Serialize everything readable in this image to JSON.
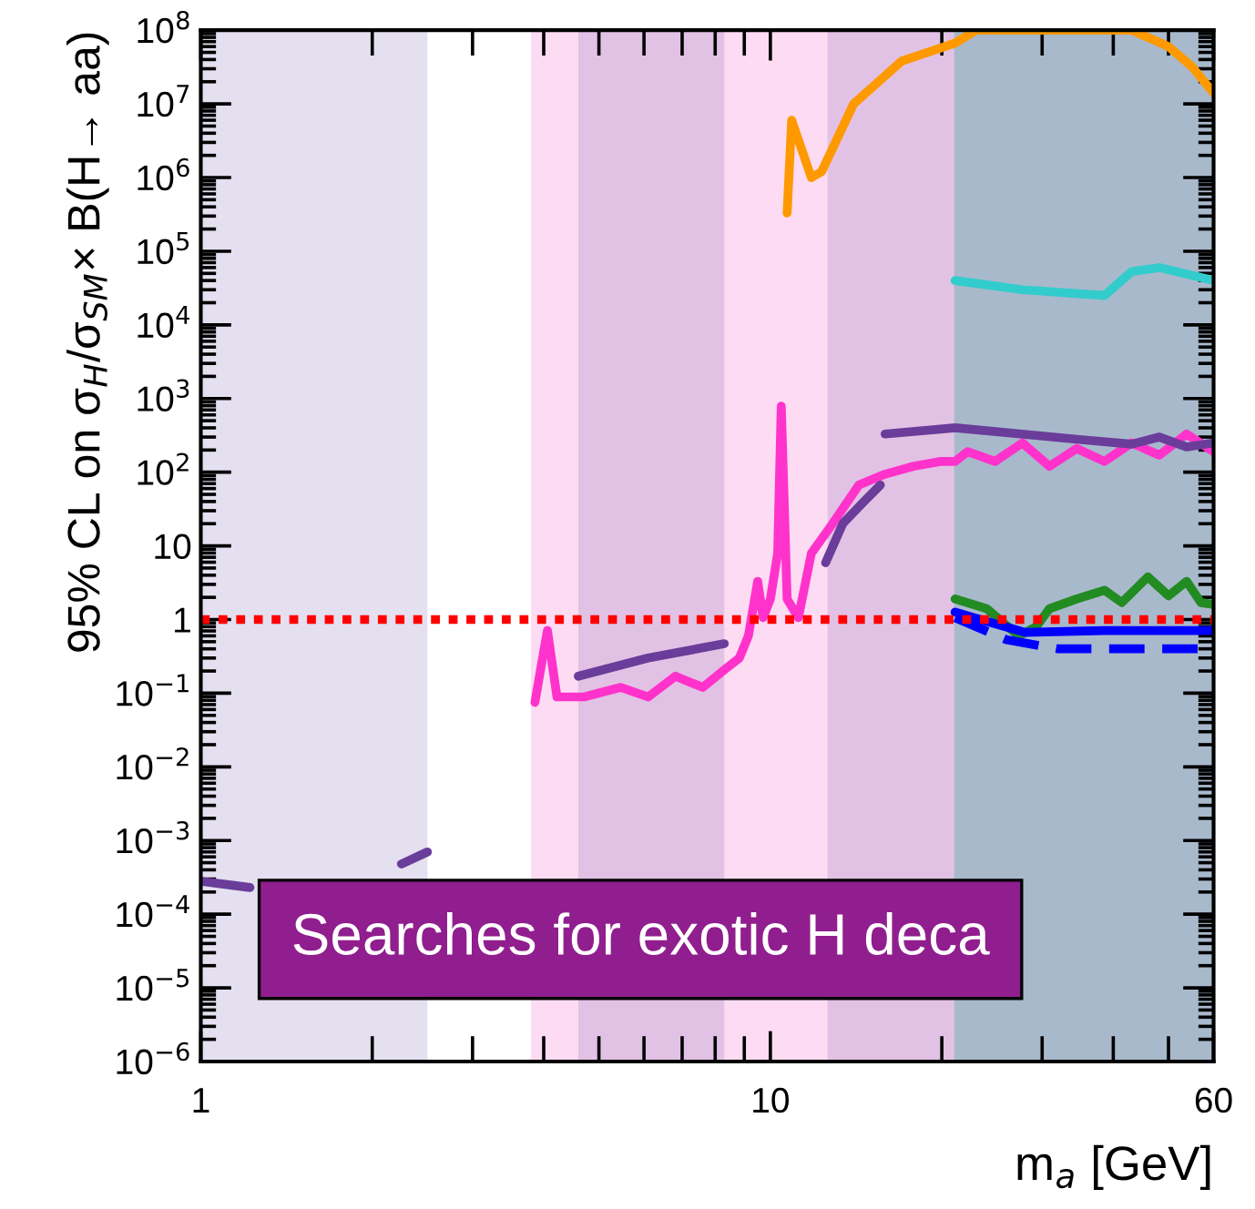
{
  "chart_data": {
    "type": "line",
    "xlabel": "m$_{a}$ [GeV]",
    "ylabel": "95% CL on σ$_{H}$/σ$_{SM}$× B(H→ aa)",
    "log": "xy",
    "grid": false,
    "legend": false,
    "marker": "none",
    "xlim": [
      1,
      60
    ],
    "xticks": [
      1,
      {
        "value": 2,
        "label": null
      },
      {
        "value": 3,
        "label": null
      },
      {
        "value": 4,
        "label": null
      },
      {
        "value": 5,
        "label": null
      },
      {
        "value": 6,
        "label": null
      },
      {
        "value": 7,
        "label": null
      },
      {
        "value": 8,
        "label": null
      },
      {
        "value": 9,
        "label": null
      },
      10,
      {
        "value": 20,
        "label": null
      },
      {
        "value": 30,
        "label": null
      },
      {
        "value": 40,
        "label": null
      },
      {
        "value": 50,
        "label": null
      },
      60
    ],
    "ylim": [
      1e-06,
      100000000.0
    ],
    "yticks": [
      {
        "value": 1e-06,
        "label": "10$^{−6}$"
      },
      {
        "value": 1e-05,
        "label": "10$^{−5}$"
      },
      {
        "value": 0.0001,
        "label": "10$^{−4}$"
      },
      {
        "value": 0.001,
        "label": "10$^{−3}$"
      },
      {
        "value": 0.01,
        "label": "10$^{−2}$"
      },
      {
        "value": 0.1,
        "label": "10$^{−1}$"
      },
      1,
      10,
      {
        "value": 100,
        "label": "10$^{2}$"
      },
      {
        "value": 1000,
        "label": "10$^{3}$"
      },
      {
        "value": 10000.0,
        "label": "10$^{4}$"
      },
      {
        "value": 100000.0,
        "label": "10$^{5}$"
      },
      {
        "value": 1000000.0,
        "label": "10$^{6}$"
      },
      {
        "value": 10000000.0,
        "label": "10$^{7}$"
      },
      {
        "value": 100000000.0,
        "label": "10$^{8}$"
      }
    ],
    "bands": [
      {
        "axis": "x",
        "from": 1,
        "to": 2.5,
        "color": "#e4e0f0"
      },
      {
        "axis": "x",
        "from": 3.8,
        "to": 21,
        "color": "#fddcf3"
      },
      {
        "axis": "x",
        "from": 4.6,
        "to": 8.3,
        "color": "#e2c2e4"
      },
      {
        "axis": "x",
        "from": 12.6,
        "to": 21,
        "color": "#e2c2e4"
      },
      {
        "axis": "x",
        "from": 21,
        "to": 60,
        "color": "#a9b9cc"
      }
    ],
    "ref_lines": [
      {
        "axis": "y",
        "value": 1,
        "color": "#ff0000",
        "line_style": "dotted"
      }
    ],
    "series": [
      {
        "color": "#6a3d9a",
        "line_style": "solid",
        "x": [
          1,
          1.22,
          1.7,
          2.25,
          2.5
        ],
        "values": [
          0.00028,
          0.00023,
          null,
          0.00048,
          0.0007
        ]
      },
      {
        "color": "#6a3d9a",
        "line_style": "solid",
        "x": [
          4.6,
          6.1,
          8.3
        ],
        "values": [
          0.17,
          0.3,
          0.47
        ]
      },
      {
        "color": "#ff33cc",
        "line_style": "solid",
        "x": [
          3.86,
          4.06,
          4.22,
          4.71,
          5.46,
          6.1,
          6.81,
          7.61,
          8.32,
          8.82,
          9.15,
          9.5,
          9.71,
          10.0,
          10.3,
          10.45,
          10.7,
          11.2,
          11.8,
          12.8,
          14.3,
          15.9,
          17.8,
          19.9,
          21.1,
          22.2,
          24.8,
          27.7,
          30.9,
          34.5,
          38.6,
          43.1,
          48.2,
          53.8,
          60
        ],
        "values": [
          0.075,
          0.71,
          0.089,
          0.089,
          0.12,
          0.089,
          0.17,
          0.12,
          0.21,
          0.3,
          0.6,
          3.3,
          1.06,
          1.9,
          7.9,
          790,
          1.9,
          1.06,
          7.9,
          19,
          67,
          94,
          120,
          140,
          140,
          190,
          140,
          250,
          120,
          210,
          140,
          250,
          170,
          330,
          190
        ]
      },
      {
        "color": "#6a3d9a",
        "line_style": "solid",
        "x": [
          12.5,
          13.4,
          14.6,
          15.6
        ],
        "values": [
          5.9,
          20,
          40,
          67
        ]
      },
      {
        "color": "#6a3d9a",
        "line_style": "solid",
        "x": [
          15.9,
          21.1,
          34.5,
          43.1,
          48.2,
          53.8,
          60
        ],
        "values": [
          330,
          400,
          280,
          240,
          300,
          220,
          250
        ]
      },
      {
        "color": "#ff9900",
        "line_style": "solid",
        "x": [
          10.7,
          10.9,
          11.8,
          12.3,
          14.0,
          17.0,
          21.1,
          23.0,
          43.1,
          50.0,
          55.0,
          60
        ],
        "values": [
          330000,
          6000000,
          1000000,
          1200000,
          10000000,
          38000000,
          67000000,
          100000000,
          100000000,
          60000000,
          32000000,
          14000000
        ]
      },
      {
        "color": "#33cccc",
        "line_style": "solid",
        "x": [
          21.1,
          27.7,
          38.6,
          43.1,
          48.2,
          60
        ],
        "values": [
          40000,
          30000,
          25000,
          53000,
          60000,
          40000
        ]
      },
      {
        "color": "#228b22",
        "line_style": "solid",
        "x": [
          21.1,
          24.0,
          27.3,
          29.3,
          30.9,
          34.5,
          38.6,
          41.4,
          46.0,
          50.0,
          53.8,
          57.0,
          60
        ],
        "values": [
          1.9,
          1.4,
          0.6,
          0.8,
          1.4,
          1.9,
          2.5,
          1.7,
          3.8,
          2.1,
          3.3,
          1.7,
          1.6
        ]
      },
      {
        "color": "#0000ff",
        "line_style": "solid",
        "x": [
          21.1,
          24.0,
          28.0,
          38.6,
          60
        ],
        "values": [
          1.26,
          0.94,
          0.67,
          0.71,
          0.71
        ]
      },
      {
        "color": "#0000ff",
        "line_style": "dashed",
        "x": [
          21.1,
          26.0,
          32.0,
          43.1,
          60
        ],
        "values": [
          1.06,
          0.53,
          0.4,
          0.4,
          0.4
        ]
      }
    ],
    "annotations": [
      "Searches for exotic H deca"
    ]
  }
}
